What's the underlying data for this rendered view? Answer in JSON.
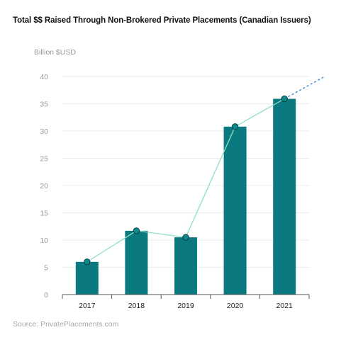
{
  "title": "Total $$ Raised Through Non-Brokered Private Placements (Canadian Issuers)",
  "unit_label": "Billion $USD",
  "source": "Source: PrivatePlacements.com",
  "colors": {
    "bar": "#0a7a80",
    "trend_line": "#8fe0c4",
    "marker_fill": "#0f8a8a",
    "marker_stroke": "#0b3b40",
    "projection": "#3b82c4"
  },
  "chart_data": {
    "type": "bar",
    "categories": [
      "2017",
      "2018",
      "2019",
      "2020",
      "2021"
    ],
    "values": [
      6,
      11.7,
      10.5,
      30.8,
      35.9
    ],
    "overlay_line": [
      6,
      11.7,
      10.5,
      30.8,
      35.9
    ],
    "projection_to": 40,
    "ylim": [
      0,
      40
    ],
    "yticks": [
      0,
      5,
      10,
      15,
      20,
      25,
      30,
      35,
      40
    ],
    "ylabel": "Billion $USD",
    "grid": true,
    "legend": "none"
  }
}
